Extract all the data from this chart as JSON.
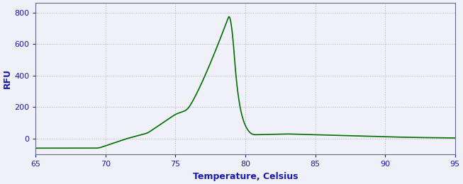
{
  "xlabel": "Temperature, Celsius",
  "ylabel": "RFU",
  "xlim": [
    65,
    95
  ],
  "ylim": [
    -100,
    860
  ],
  "yticks": [
    0,
    200,
    400,
    600,
    800
  ],
  "xticks": [
    65,
    70,
    75,
    80,
    85,
    90,
    95
  ],
  "line_color": "#007000",
  "bg_color": "#f0f0f8",
  "xlabel_color": "#1a1aaa",
  "ylabel_color": "#1a1aaa",
  "tick_color": "#1a1aaa",
  "grid_color": "#b0b0cc",
  "linewidth": 1.2
}
